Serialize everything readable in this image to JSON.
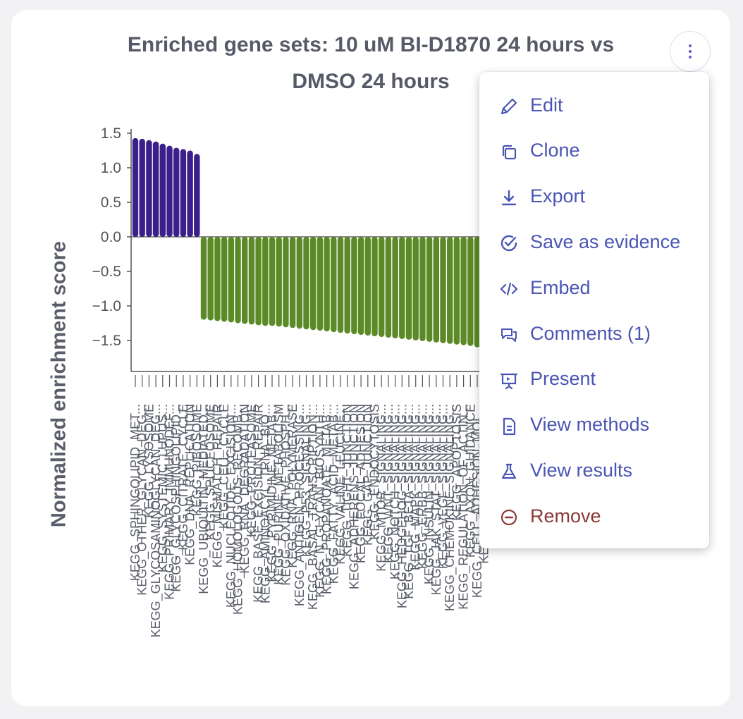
{
  "widget": {
    "title_line1": "Enriched gene sets: 10 uM BI-D1870 24 hours vs",
    "title_line2": "DMSO 24 hours",
    "more_button_icon": "vertical-dots-icon"
  },
  "colors": {
    "positive": "#3b1f8a",
    "negative": "#5b8a27",
    "axis": "#555555",
    "menu_text": "#4a55b4",
    "danger_text": "#8a3a36"
  },
  "chart_data": {
    "type": "bar",
    "title": "Enriched gene sets: 10 uM BI-D1870 24 hours vs DMSO 24 hours",
    "ylabel": "Normalized enrichment score",
    "xlabel": "",
    "ylim": [
      -1.95,
      1.6
    ],
    "yticks": [
      1.5,
      1.0,
      0.5,
      0.0,
      -0.5,
      -1.0,
      -1.5
    ],
    "ytick_labels": [
      "1.5",
      "1.0",
      "0.5",
      "0.0",
      "−0.5",
      "−1.0",
      "−1.5"
    ],
    "grid": false,
    "categories": [
      "KEGG_SPHINGOLIPID_MET...",
      "KEGG_OTHER_GLYCAN_DEG...",
      "KEGG_LYSOSOME",
      "KEGG_GLYCOSAMINOGLYCAN_DEG...",
      "KEGG_SYSTEMIC_LUPUS...",
      "KEGG_PRIMARY_IMMUNODEF...",
      "KEGG_GLYCOSPHINGOLIPID...",
      "KEGG_CITRATE_CYCLE",
      "KEGG_DNA_REPLICATION",
      "KEGG_RIBOSOME",
      "KEGG_UBIQUITIN_MEDIATED...",
      "KEGG_SPLICEOSOME",
      "KEGG_MISMATCH_REPAIR",
      "KEGG_CELL_CYCLE",
      "KEGG_NUCLEOTIDE_EXCISION...",
      "KEGG_HOMOLOGOUS_RECOMB...",
      "KEGG_RNA_DEGRADATION",
      "KEGG_PROTEASOME",
      "KEGG_BASE_EXCISION_REPAIR",
      "KEGG_AMINOACYL_TRNA_BIO...",
      "KEGG_PYRIMIDINE_METAB...",
      "KEGG_PURINE_METABOLISM",
      "KEGG_OXIDATIVE_PHOSPH...",
      "KEGG_RNA_POLYMERASE",
      "KEGG_ANTIGEN_PROCESSING...",
      "KEGG_P53_SIGNALING...",
      "KEGG_BASAL_TRANSCRIPTION...",
      "KEGG_N_GLYCAN_BIOSYNTH...",
      "KEGG_PROPANOATE_METAB...",
      "KEGG_FATTY_ACID_METAB...",
      "KEGG_VALINE_LEUCINE...",
      "KEGG_TIGHT_JUNCTION",
      "KEGG_ADHERENS_JUNCTION",
      "KEGG_FOCAL_ADHESION",
      "KEGG_GAP_JUNCTION",
      "KEGG_ENDOCYTOSIS",
      "KEGG_MTOR_SIGNALING...",
      "KEGG_WNT_SIGNALING...",
      "KEGG_NOTCH_SIGNALING...",
      "KEGG_HEDGEHOG_SIGNALING...",
      "KEGG_TGF_BETA_SIGNALING...",
      "KEGG_MAPK_SIGNALING...",
      "KEGG_ERBB_SIGNALING...",
      "KEGG_INSULIN_SIGNALING...",
      "KEGG_JAK_STAT_SIGNALING...",
      "KEGG_VEGF_SIGNALING...",
      "KEGG_CHEMOKINE_SIGNALING...",
      "KEGG_APOPTOSIS",
      "KEGG_REGULATION_OF_ACTIN...",
      "KEGG_AXON_GUIDANCE",
      "KEGG_CELL_ADHESION_MOL...",
      "KEGG_ECM_RECEPTOR..."
    ],
    "values": [
      1.43,
      1.42,
      1.4,
      1.38,
      1.35,
      1.32,
      1.29,
      1.27,
      1.25,
      1.2,
      -1.2,
      -1.21,
      -1.22,
      -1.23,
      -1.24,
      -1.25,
      -1.26,
      -1.27,
      -1.28,
      -1.29,
      -1.29,
      -1.3,
      -1.31,
      -1.32,
      -1.33,
      -1.34,
      -1.35,
      -1.36,
      -1.37,
      -1.38,
      -1.39,
      -1.4,
      -1.41,
      -1.42,
      -1.43,
      -1.44,
      -1.45,
      -1.46,
      -1.47,
      -1.48,
      -1.49,
      -1.5,
      -1.51,
      -1.52,
      -1.53,
      -1.54,
      -1.55,
      -1.56,
      -1.57,
      -1.58,
      -1.6,
      -1.62
    ]
  },
  "menu": {
    "items": [
      {
        "label": "Edit",
        "icon": "pencil-icon",
        "kind": "normal"
      },
      {
        "label": "Clone",
        "icon": "copy-icon",
        "kind": "normal"
      },
      {
        "label": "Export",
        "icon": "download-icon",
        "kind": "normal"
      },
      {
        "label": "Save as evidence",
        "icon": "check-circle-icon",
        "kind": "normal"
      },
      {
        "label": "Embed",
        "icon": "code-icon",
        "kind": "normal"
      },
      {
        "label": "Comments (1)",
        "icon": "comments-icon",
        "kind": "normal"
      },
      {
        "label": "Present",
        "icon": "presentation-icon",
        "kind": "normal"
      },
      {
        "label": "View methods",
        "icon": "document-icon",
        "kind": "normal"
      },
      {
        "label": "View results",
        "icon": "flask-icon",
        "kind": "normal"
      },
      {
        "label": "Remove",
        "icon": "minus-circle-icon",
        "kind": "danger"
      }
    ]
  }
}
